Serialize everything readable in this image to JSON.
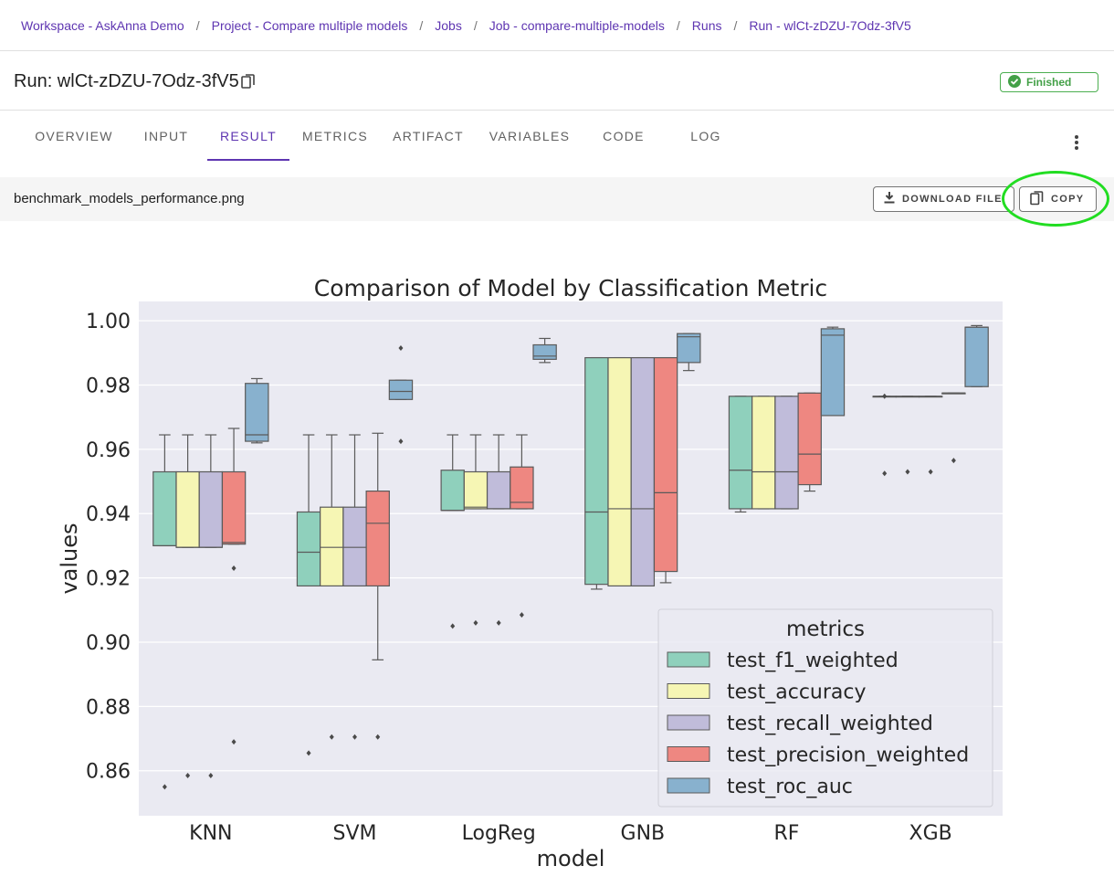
{
  "breadcrumb": [
    "Workspace - AskAnna Demo",
    "Project - Compare multiple models",
    "Jobs",
    "Job - compare-multiple-models",
    "Runs",
    "Run - wlCt-zDZU-7Odz-3fV5"
  ],
  "header": {
    "title": "Run: wlCt-zDZU-7Odz-3fV5",
    "status": "Finished"
  },
  "tabs": [
    "OVERVIEW",
    "INPUT",
    "RESULT",
    "METRICS",
    "ARTIFACT",
    "VARIABLES",
    "CODE",
    "LOG"
  ],
  "active_tab": "RESULT",
  "file_bar": {
    "file_name": "benchmark_models_performance.png",
    "download_label": "DOWNLOAD FILE",
    "copy_label": "COPY"
  },
  "colors": {
    "accent": "#5e35b1",
    "status_green": "#43a047",
    "highlight": "#22dd22"
  },
  "chart_data": {
    "type": "box",
    "title": "Comparison of Model by Classification Metric",
    "xlabel": "model",
    "ylabel": "values",
    "ylim": [
      0.846,
      1.006
    ],
    "yticks": [
      0.86,
      0.88,
      0.9,
      0.92,
      0.94,
      0.96,
      0.98,
      1.0
    ],
    "ytick_labels": [
      "0.86",
      "0.88",
      "0.90",
      "0.92",
      "0.94",
      "0.96",
      "0.98",
      "1.00"
    ],
    "categories": [
      "KNN",
      "SVM",
      "LogReg",
      "GNB",
      "RF",
      "XGB"
    ],
    "legend": {
      "title": "metrics",
      "position": "lower-right"
    },
    "series": [
      {
        "name": "test_f1_weighted",
        "color": "#8fd0bc",
        "boxes": [
          {
            "whislo": 0.93,
            "q1": 0.93,
            "med": 0.93,
            "q3": 0.953,
            "whishi": 0.9645,
            "fliers": [
              0.855
            ]
          },
          {
            "whislo": 0.9175,
            "q1": 0.9175,
            "med": 0.928,
            "q3": 0.9405,
            "whishi": 0.9645,
            "fliers": [
              0.8655
            ]
          },
          {
            "whislo": 0.941,
            "q1": 0.941,
            "med": 0.941,
            "q3": 0.9535,
            "whishi": 0.9645,
            "fliers": [
              0.905
            ]
          },
          {
            "whislo": 0.9165,
            "q1": 0.918,
            "med": 0.9405,
            "q3": 0.9885,
            "whishi": 0.9885,
            "fliers": []
          },
          {
            "whislo": 0.9405,
            "q1": 0.9415,
            "med": 0.9535,
            "q3": 0.9765,
            "whishi": 0.9765,
            "fliers": []
          },
          {
            "whislo": 0.9765,
            "q1": 0.9765,
            "med": 0.9765,
            "q3": 0.9765,
            "whishi": 0.9765,
            "fliers": [
              0.9525,
              0.9765
            ]
          }
        ]
      },
      {
        "name": "test_accuracy",
        "color": "#f6f6b4",
        "boxes": [
          {
            "whislo": 0.9295,
            "q1": 0.9295,
            "med": 0.9295,
            "q3": 0.953,
            "whishi": 0.9645,
            "fliers": [
              0.8585
            ]
          },
          {
            "whislo": 0.9175,
            "q1": 0.9175,
            "med": 0.9295,
            "q3": 0.942,
            "whishi": 0.9645,
            "fliers": [
              0.8705
            ]
          },
          {
            "whislo": 0.9415,
            "q1": 0.9415,
            "med": 0.942,
            "q3": 0.953,
            "whishi": 0.9645,
            "fliers": [
              0.906
            ]
          },
          {
            "whislo": 0.9175,
            "q1": 0.9175,
            "med": 0.9415,
            "q3": 0.9885,
            "whishi": 0.9885,
            "fliers": []
          },
          {
            "whislo": 0.9415,
            "q1": 0.9415,
            "med": 0.953,
            "q3": 0.9765,
            "whishi": 0.9765,
            "fliers": []
          },
          {
            "whislo": 0.9765,
            "q1": 0.9765,
            "med": 0.9765,
            "q3": 0.9765,
            "whishi": 0.9765,
            "fliers": [
              0.953
            ]
          }
        ]
      },
      {
        "name": "test_recall_weighted",
        "color": "#c0bcda",
        "boxes": [
          {
            "whislo": 0.9295,
            "q1": 0.9295,
            "med": 0.9295,
            "q3": 0.953,
            "whishi": 0.9645,
            "fliers": [
              0.8585
            ]
          },
          {
            "whislo": 0.9175,
            "q1": 0.9175,
            "med": 0.9295,
            "q3": 0.942,
            "whishi": 0.9645,
            "fliers": [
              0.8705
            ]
          },
          {
            "whislo": 0.9415,
            "q1": 0.9415,
            "med": 0.9415,
            "q3": 0.953,
            "whishi": 0.9645,
            "fliers": [
              0.906
            ]
          },
          {
            "whislo": 0.9175,
            "q1": 0.9175,
            "med": 0.9415,
            "q3": 0.9885,
            "whishi": 0.9885,
            "fliers": []
          },
          {
            "whislo": 0.9415,
            "q1": 0.9415,
            "med": 0.953,
            "q3": 0.9765,
            "whishi": 0.9765,
            "fliers": []
          },
          {
            "whislo": 0.9765,
            "q1": 0.9765,
            "med": 0.9765,
            "q3": 0.9765,
            "whishi": 0.9765,
            "fliers": [
              0.953
            ]
          }
        ]
      },
      {
        "name": "test_precision_weighted",
        "color": "#ee8781",
        "boxes": [
          {
            "whislo": 0.9305,
            "q1": 0.9305,
            "med": 0.931,
            "q3": 0.953,
            "whishi": 0.9665,
            "fliers": [
              0.869,
              0.923
            ]
          },
          {
            "whislo": 0.8945,
            "q1": 0.9175,
            "med": 0.937,
            "q3": 0.947,
            "whishi": 0.965,
            "fliers": [
              0.8705
            ]
          },
          {
            "whislo": 0.9415,
            "q1": 0.9415,
            "med": 0.9435,
            "q3": 0.9545,
            "whishi": 0.9645,
            "fliers": [
              0.9085
            ]
          },
          {
            "whislo": 0.9185,
            "q1": 0.922,
            "med": 0.9465,
            "q3": 0.9885,
            "whishi": 0.9885,
            "fliers": []
          },
          {
            "whislo": 0.947,
            "q1": 0.949,
            "med": 0.9585,
            "q3": 0.9775,
            "whishi": 0.9775,
            "fliers": []
          },
          {
            "whislo": 0.9775,
            "q1": 0.9775,
            "med": 0.9775,
            "q3": 0.9775,
            "whishi": 0.9775,
            "fliers": [
              0.9565
            ]
          }
        ]
      },
      {
        "name": "test_roc_auc",
        "color": "#88b1ce",
        "boxes": [
          {
            "whislo": 0.962,
            "q1": 0.9625,
            "med": 0.9645,
            "q3": 0.9805,
            "whishi": 0.982,
            "fliers": []
          },
          {
            "whislo": 0.9755,
            "q1": 0.9755,
            "med": 0.978,
            "q3": 0.9815,
            "whishi": 0.9815,
            "fliers": [
              0.9915,
              0.9625
            ]
          },
          {
            "whislo": 0.987,
            "q1": 0.988,
            "med": 0.989,
            "q3": 0.9925,
            "whishi": 0.9945,
            "fliers": []
          },
          {
            "whislo": 0.9845,
            "q1": 0.987,
            "med": 0.995,
            "q3": 0.996,
            "whishi": 0.996,
            "fliers": []
          },
          {
            "whislo": 0.9705,
            "q1": 0.9705,
            "med": 0.9955,
            "q3": 0.9975,
            "whishi": 0.998,
            "fliers": []
          },
          {
            "whislo": 0.9795,
            "q1": 0.9795,
            "med": 0.998,
            "q3": 0.998,
            "whishi": 0.9985,
            "fliers": []
          }
        ]
      }
    ]
  }
}
